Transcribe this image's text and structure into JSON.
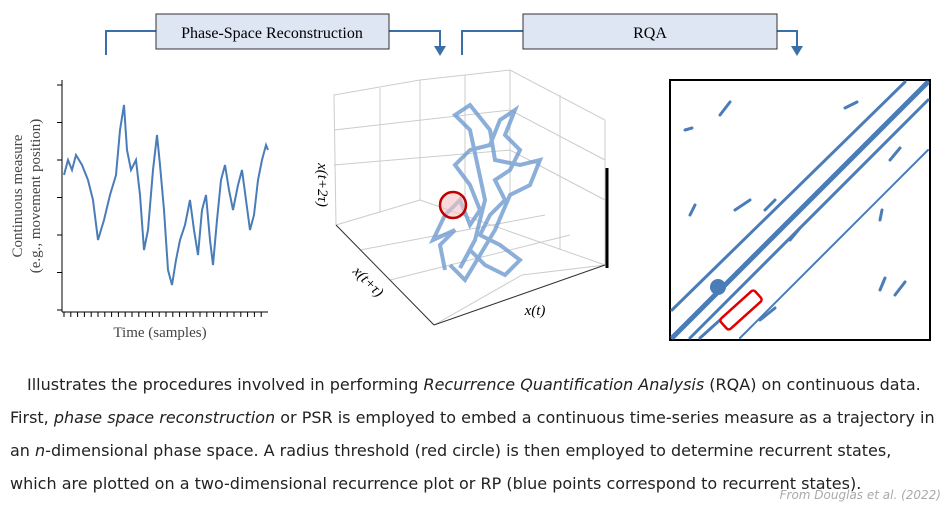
{
  "header": {
    "psr_label": "Phase-Space Reconstruction",
    "rqa_label": "RQA"
  },
  "time_series": {
    "y_label_line1": "Continuous measure",
    "y_label_line2": "(e.g., movement position)",
    "x_label": "Time (samples)"
  },
  "phase_space": {
    "z_label": "x(t+2τ)",
    "y_label": "x(t+τ)",
    "x_label": "x(t)"
  },
  "caption": {
    "segments": [
      "Illustrates the procedures involved in performing ",
      "Recurrence Quantification Analysis",
      " (RQA) on continuous data. First, ",
      "phase space reconstruction",
      " or PSR is employed to embed a continuous time-series measure as a trajectory in an ",
      "n",
      "-dimensional phase space. A radius threshold (red circle) is then employed to determine recurrent states, which are plotted on a two-dimensional recurrence plot or RP (blue points correspond to recurrent states)."
    ],
    "source": "From Douglas et al. (2022)"
  }
}
